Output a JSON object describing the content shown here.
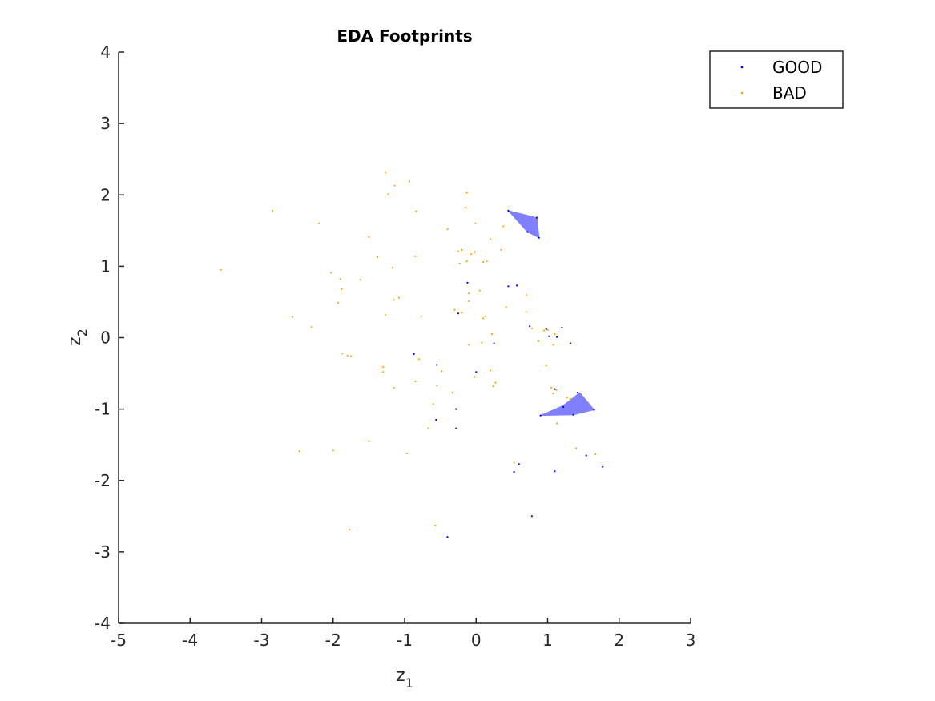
{
  "chart_data": {
    "type": "scatter",
    "title": "EDA Footprints",
    "xlabel": {
      "base": "z",
      "sub": "1"
    },
    "ylabel": {
      "base": "z",
      "sub": "2"
    },
    "xlim": [
      -5,
      3
    ],
    "ylim": [
      -4,
      4
    ],
    "xticks": [
      -5,
      -4,
      -3,
      -2,
      -1,
      0,
      1,
      2,
      3
    ],
    "yticks": [
      -4,
      -3,
      -2,
      -1,
      0,
      1,
      2,
      3,
      4
    ],
    "grid": false,
    "legend_position": "top-right",
    "colors": {
      "good": "#0000ff",
      "bad": "#ffa500",
      "footprint": "#8080ff"
    },
    "series": [
      {
        "name": "GOOD",
        "color": "#0000ff",
        "points": [
          [
            0.45,
            1.78
          ],
          [
            0.85,
            1.68
          ],
          [
            0.72,
            1.48
          ],
          [
            0.88,
            1.4
          ],
          [
            -0.12,
            0.77
          ],
          [
            0.45,
            0.72
          ],
          [
            0.57,
            0.73
          ],
          [
            -0.25,
            0.34
          ],
          [
            0.75,
            0.16
          ],
          [
            1.2,
            0.14
          ],
          [
            0.98,
            0.12
          ],
          [
            1.02,
            0.02
          ],
          [
            1.13,
            0.01
          ],
          [
            1.32,
            -0.08
          ],
          [
            0.25,
            -0.08
          ],
          [
            -0.87,
            -0.23
          ],
          [
            -0.55,
            -0.38
          ],
          [
            0.0,
            -0.48
          ],
          [
            1.1,
            -0.72
          ],
          [
            1.42,
            -0.77
          ],
          [
            1.22,
            -0.97
          ],
          [
            1.36,
            -1.08
          ],
          [
            1.65,
            -1.01
          ],
          [
            0.9,
            -1.09
          ],
          [
            -0.28,
            -1.0
          ],
          [
            -0.56,
            -1.15
          ],
          [
            -0.28,
            -1.27
          ],
          [
            1.54,
            -1.65
          ],
          [
            1.77,
            -1.81
          ],
          [
            0.6,
            -1.77
          ],
          [
            0.53,
            -1.88
          ],
          [
            1.1,
            -1.87
          ],
          [
            0.78,
            -2.5
          ],
          [
            -0.4,
            -2.79
          ]
        ]
      },
      {
        "name": "BAD",
        "color": "#ffa500",
        "points": [
          [
            -1.27,
            2.31
          ],
          [
            -0.93,
            2.19
          ],
          [
            -1.14,
            2.13
          ],
          [
            -1.23,
            2.01
          ],
          [
            -0.13,
            2.03
          ],
          [
            -0.84,
            1.77
          ],
          [
            -0.15,
            1.82
          ],
          [
            -2.85,
            1.78
          ],
          [
            -2.2,
            1.6
          ],
          [
            -0.01,
            1.6
          ],
          [
            0.38,
            1.56
          ],
          [
            -0.4,
            1.52
          ],
          [
            0.2,
            1.38
          ],
          [
            -1.5,
            1.41
          ],
          [
            -1.38,
            1.13
          ],
          [
            -0.85,
            1.14
          ],
          [
            -1.17,
            0.98
          ],
          [
            -0.25,
            1.21
          ],
          [
            -0.2,
            1.23
          ],
          [
            -0.02,
            1.2
          ],
          [
            -0.07,
            1.17
          ],
          [
            -0.23,
            1.04
          ],
          [
            -0.13,
            1.07
          ],
          [
            0.1,
            1.06
          ],
          [
            0.15,
            1.07
          ],
          [
            0.35,
            1.23
          ],
          [
            -3.57,
            0.95
          ],
          [
            -2.03,
            0.91
          ],
          [
            -1.62,
            0.81
          ],
          [
            -1.9,
            0.82
          ],
          [
            -1.88,
            0.68
          ],
          [
            -0.1,
            0.62
          ],
          [
            0.05,
            0.66
          ],
          [
            -1.08,
            0.56
          ],
          [
            -1.15,
            0.53
          ],
          [
            -1.93,
            0.49
          ],
          [
            -0.1,
            0.51
          ],
          [
            0.42,
            0.43
          ],
          [
            0.7,
            0.6
          ],
          [
            0.7,
            0.36
          ],
          [
            -0.3,
            0.39
          ],
          [
            -0.2,
            0.35
          ],
          [
            -1.27,
            0.32
          ],
          [
            -0.77,
            0.3
          ],
          [
            0.13,
            0.3
          ],
          [
            0.1,
            0.27
          ],
          [
            -2.57,
            0.29
          ],
          [
            -2.3,
            0.15
          ],
          [
            0.78,
            0.13
          ],
          [
            0.95,
            0.1
          ],
          [
            1.0,
            0.11
          ],
          [
            1.1,
            0.05
          ],
          [
            0.22,
            0.05
          ],
          [
            0.08,
            -0.07
          ],
          [
            -0.1,
            -0.1
          ],
          [
            0.87,
            -0.05
          ],
          [
            1.08,
            -0.1
          ],
          [
            -1.87,
            -0.22
          ],
          [
            -1.8,
            -0.25
          ],
          [
            -1.75,
            -0.26
          ],
          [
            -0.8,
            -0.3
          ],
          [
            0.98,
            -0.39
          ],
          [
            -1.3,
            -0.41
          ],
          [
            -1.3,
            -0.48
          ],
          [
            -0.48,
            -0.47
          ],
          [
            0.2,
            -0.46
          ],
          [
            -0.02,
            -0.55
          ],
          [
            0.27,
            -0.63
          ],
          [
            0.24,
            -0.68
          ],
          [
            -0.55,
            -0.67
          ],
          [
            -1.15,
            -0.7
          ],
          [
            -0.33,
            -0.77
          ],
          [
            -0.85,
            -0.61
          ],
          [
            1.05,
            -0.7
          ],
          [
            1.12,
            -0.73
          ],
          [
            1.08,
            -0.78
          ],
          [
            1.27,
            -0.84
          ],
          [
            1.32,
            -0.86
          ],
          [
            -0.6,
            -0.93
          ],
          [
            1.13,
            -1.2
          ],
          [
            -0.67,
            -1.27
          ],
          [
            1.4,
            -1.55
          ],
          [
            1.67,
            -1.63
          ],
          [
            -2.47,
            -1.59
          ],
          [
            -2.0,
            -1.58
          ],
          [
            -0.97,
            -1.62
          ],
          [
            -1.5,
            -1.45
          ],
          [
            0.53,
            -1.75
          ],
          [
            -0.57,
            -2.63
          ],
          [
            -1.77,
            -2.69
          ],
          [
            0.85,
            1.7
          ]
        ]
      }
    ],
    "footprints": [
      {
        "series": "GOOD",
        "polygon": [
          [
            0.45,
            1.78
          ],
          [
            0.85,
            1.68
          ],
          [
            0.88,
            1.4
          ],
          [
            0.72,
            1.48
          ]
        ]
      },
      {
        "series": "GOOD",
        "polygon": [
          [
            0.9,
            -1.09
          ],
          [
            1.22,
            -0.95
          ],
          [
            1.45,
            -0.77
          ],
          [
            1.65,
            -1.01
          ],
          [
            1.36,
            -1.08
          ]
        ]
      }
    ]
  }
}
